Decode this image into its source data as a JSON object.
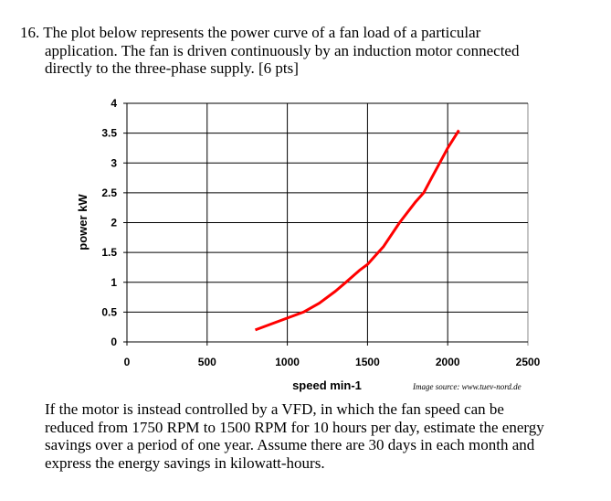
{
  "question": {
    "number": "16.",
    "line1": "The plot below represents the power curve of a fan load of a particular",
    "line2": "application.  The fan is driven continuously by an induction motor connected",
    "line3": "directly to the three-phase supply.  [6 pts]"
  },
  "chart_data": {
    "type": "line",
    "xlabel": "speed min-1",
    "ylabel": "power kW",
    "xlim": [
      0,
      2500
    ],
    "ylim": [
      0,
      4
    ],
    "xticks": [
      "0",
      "500",
      "1000",
      "1500",
      "2000",
      "2500"
    ],
    "yticks": [
      "0",
      "0.5",
      "1",
      "1.5",
      "2",
      "2.5",
      "3",
      "3.5",
      "4"
    ],
    "grid": true,
    "series": [
      {
        "color": "#ff0000",
        "x": [
          800,
          900,
          1000,
          1100,
          1200,
          1300,
          1365,
          1450,
          1500,
          1550,
          1600,
          1700,
          1800,
          1850,
          1900,
          1950,
          2000,
          2070
        ],
        "y": [
          0.2,
          0.3,
          0.4,
          0.5,
          0.65,
          0.85,
          1.0,
          1.2,
          1.3,
          1.45,
          1.6,
          2.0,
          2.35,
          2.5,
          2.75,
          3.0,
          3.25,
          3.55
        ]
      }
    ],
    "source_note": "Image source: www.tuev-nord.de"
  },
  "followup": {
    "line1": "If the motor is instead controlled by a VFD, in which the fan speed can be",
    "line2": "reduced from 1750 RPM to 1500 RPM for 10 hours per day, estimate the energy",
    "line3": "savings over a period of one year.  Assume there are 30 days in each month and",
    "line4": "express the energy savings in kilowatt-hours."
  }
}
